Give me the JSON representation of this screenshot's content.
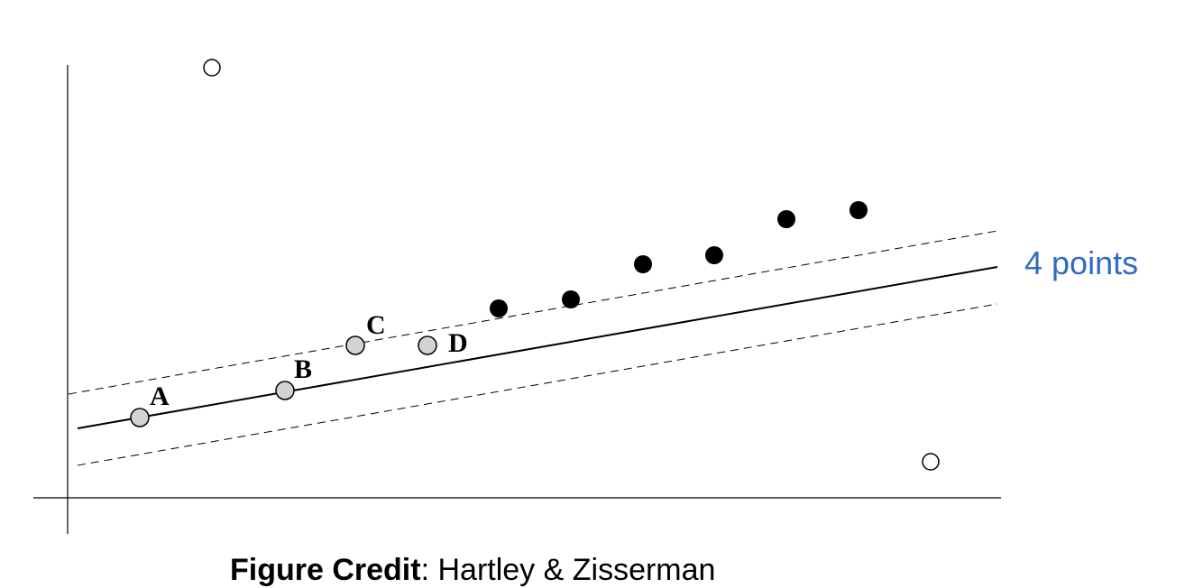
{
  "annotation": {
    "text": "4 points",
    "color": "#2f6cc0"
  },
  "labels": {
    "a": "A",
    "b": "B",
    "c": "C",
    "d": "D"
  },
  "credit": {
    "title": "Figure Credit",
    "separator": ":",
    "author": " Hartley & Zisserman"
  },
  "colors": {
    "ink": "#000000",
    "inlier_fill": "#d3d3d3",
    "outlier_fill": "#ffffff",
    "solid_fill": "#000000"
  }
}
